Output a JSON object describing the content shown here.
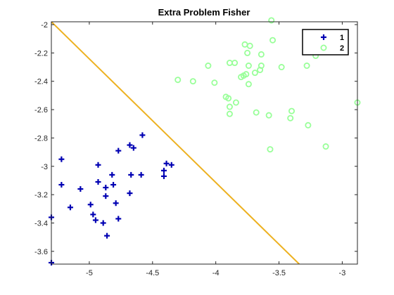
{
  "chart_data": {
    "type": "scatter",
    "title": "Extra Problem Fisher",
    "xlabel": "",
    "ylabel": "",
    "xlim": [
      -5.3,
      -2.88
    ],
    "ylim": [
      -3.69,
      -1.98
    ],
    "xticks": [
      -5,
      -4.5,
      -4,
      -3.5,
      -3
    ],
    "xtick_labels": [
      "-5",
      "-4.5",
      "-4",
      "-3.5",
      "-3"
    ],
    "yticks": [
      -2,
      -2.2,
      -2.4,
      -2.6,
      -2.8,
      -3,
      -3.2,
      -3.4,
      -3.6
    ],
    "ytick_labels": [
      "-2",
      "-2.2",
      "-2.4",
      "-2.6",
      "-2.8",
      "-3",
      "-3.2",
      "-3.4",
      "-3.6"
    ],
    "grid": false,
    "legend_position": "top-right",
    "series": [
      {
        "name": "1",
        "marker": "plus",
        "color": "#0000b3",
        "points": [
          [
            -5.3,
            -3.36
          ],
          [
            -5.3,
            -3.68
          ],
          [
            -5.22,
            -2.95
          ],
          [
            -5.22,
            -3.13
          ],
          [
            -5.15,
            -3.29
          ],
          [
            -5.07,
            -3.16
          ],
          [
            -4.99,
            -3.27
          ],
          [
            -4.97,
            -3.34
          ],
          [
            -4.95,
            -3.38
          ],
          [
            -4.93,
            -2.99
          ],
          [
            -4.93,
            -3.11
          ],
          [
            -4.89,
            -3.4
          ],
          [
            -4.87,
            -3.21
          ],
          [
            -4.87,
            -3.15
          ],
          [
            -4.86,
            -3.49
          ],
          [
            -4.82,
            -3.06
          ],
          [
            -4.81,
            -3.13
          ],
          [
            -4.79,
            -3.26
          ],
          [
            -4.77,
            -3.37
          ],
          [
            -4.77,
            -2.89
          ],
          [
            -4.68,
            -2.85
          ],
          [
            -4.68,
            -3.19
          ],
          [
            -4.67,
            -3.06
          ],
          [
            -4.65,
            -2.87
          ],
          [
            -4.59,
            -3.06
          ],
          [
            -4.58,
            -2.78
          ],
          [
            -4.41,
            -3.03
          ],
          [
            -4.41,
            -3.07
          ],
          [
            -4.39,
            -2.98
          ],
          [
            -4.35,
            -2.99
          ]
        ]
      },
      {
        "name": "2",
        "marker": "circle",
        "color": "#99ff99",
        "points": [
          [
            -4.3,
            -2.39
          ],
          [
            -4.18,
            -2.4
          ],
          [
            -4.06,
            -2.29
          ],
          [
            -4.01,
            -2.41
          ],
          [
            -3.92,
            -2.51
          ],
          [
            -3.9,
            -2.52
          ],
          [
            -3.89,
            -2.58
          ],
          [
            -3.89,
            -2.63
          ],
          [
            -3.89,
            -2.27
          ],
          [
            -3.85,
            -2.27
          ],
          [
            -3.84,
            -2.55
          ],
          [
            -3.8,
            -2.37
          ],
          [
            -3.78,
            -2.36
          ],
          [
            -3.77,
            -2.14
          ],
          [
            -3.76,
            -2.35
          ],
          [
            -3.75,
            -2.2
          ],
          [
            -3.74,
            -2.29
          ],
          [
            -3.74,
            -2.42
          ],
          [
            -3.73,
            -2.15
          ],
          [
            -3.69,
            -2.34
          ],
          [
            -3.68,
            -2.62
          ],
          [
            -3.65,
            -2.32
          ],
          [
            -3.64,
            -2.29
          ],
          [
            -3.64,
            -2.21
          ],
          [
            -3.58,
            -2.64
          ],
          [
            -3.57,
            -2.88
          ],
          [
            -3.56,
            -1.97
          ],
          [
            -3.55,
            -2.11
          ],
          [
            -3.48,
            -2.3
          ],
          [
            -3.41,
            -2.66
          ],
          [
            -3.4,
            -2.61
          ],
          [
            -3.28,
            -2.29
          ],
          [
            -3.27,
            -2.71
          ],
          [
            -3.21,
            -2.22
          ],
          [
            -3.16,
            -2.17
          ],
          [
            -3.13,
            -2.86
          ],
          [
            -2.88,
            -2.55
          ]
        ]
      }
    ],
    "line": {
      "color": "#edb120",
      "points": [
        [
          -5.3,
          -1.98
        ],
        [
          -3.34,
          -3.69
        ]
      ]
    }
  }
}
